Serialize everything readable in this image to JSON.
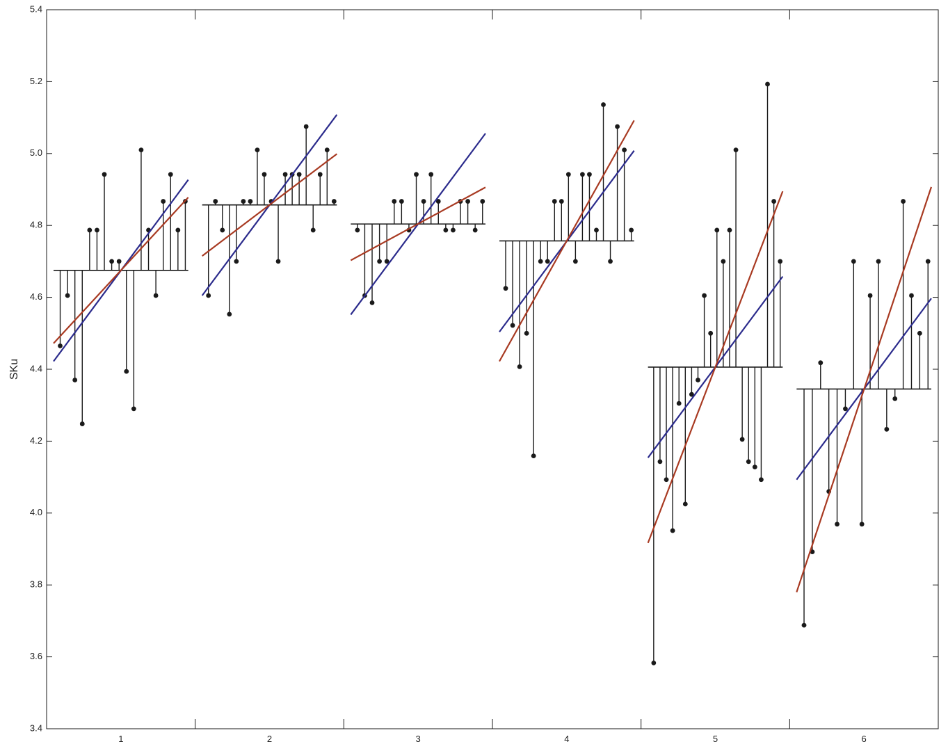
{
  "chart_data": {
    "type": "scatter",
    "title": "",
    "xlabel": "",
    "ylabel": "SKu",
    "ylim": [
      3.4,
      5.4
    ],
    "y_ticks": [
      "3.4",
      "3.6",
      "3.8",
      "4.0",
      "4.2",
      "4.4",
      "4.6",
      "4.8",
      "5.0",
      "5.2",
      "5.4"
    ],
    "categories": [
      "1",
      "2",
      "3",
      "4",
      "5",
      "6"
    ],
    "grid": false,
    "legend": "none",
    "colors": {
      "stem": "#1a1a1a",
      "blue_fit": "#2b2b8c",
      "red_fit": "#a83a22"
    },
    "groups": [
      {
        "category": "1",
        "mean": 4.675,
        "points": [
          4.465,
          4.605,
          4.37,
          4.248,
          4.787,
          4.787,
          4.942,
          4.7,
          4.7,
          4.394,
          4.29,
          5.01,
          4.787,
          4.605,
          4.867,
          4.942,
          4.787,
          4.867
        ],
        "blue_fit": [
          4.422,
          4.927
        ],
        "red_fit": [
          4.472,
          4.878
        ]
      },
      {
        "category": "2",
        "mean": 4.857,
        "points": [
          4.605,
          4.867,
          4.787,
          4.553,
          4.7,
          4.867,
          4.867,
          5.01,
          4.942,
          4.867,
          4.7,
          4.942,
          4.942,
          4.942,
          5.075,
          4.787,
          4.942,
          5.01,
          4.867
        ],
        "blue_fit": [
          4.605,
          5.108
        ],
        "red_fit": [
          4.715,
          4.999
        ]
      },
      {
        "category": "3",
        "mean": 4.804,
        "points": [
          4.787,
          4.605,
          4.585,
          4.7,
          4.7,
          4.867,
          4.867,
          4.787,
          4.942,
          4.867,
          4.942,
          4.867,
          4.787,
          4.787,
          4.867,
          4.867,
          4.787,
          4.867
        ],
        "blue_fit": [
          4.552,
          5.056
        ],
        "red_fit": [
          4.703,
          4.906
        ]
      },
      {
        "category": "4",
        "mean": 4.757,
        "points": [
          4.625,
          4.522,
          4.407,
          4.5,
          4.159,
          4.7,
          4.7,
          4.867,
          4.867,
          4.942,
          4.7,
          4.942,
          4.942,
          4.787,
          5.136,
          4.7,
          5.075,
          5.01,
          4.787
        ],
        "blue_fit": [
          4.504,
          5.008
        ],
        "red_fit": [
          4.422,
          5.092
        ]
      },
      {
        "category": "5",
        "mean": 4.406,
        "points": [
          3.583,
          4.143,
          4.093,
          3.951,
          4.305,
          4.025,
          4.33,
          4.37,
          4.605,
          4.5,
          4.787,
          4.7,
          4.787,
          5.01,
          4.205,
          4.143,
          4.128,
          4.093,
          5.193,
          4.867,
          4.7
        ],
        "blue_fit": [
          4.154,
          4.658
        ],
        "red_fit": [
          3.917,
          4.895
        ]
      },
      {
        "category": "6",
        "mean": 4.345,
        "points": [
          3.688,
          3.892,
          4.418,
          4.06,
          3.969,
          4.29,
          4.7,
          3.969,
          4.605,
          4.7,
          4.233,
          4.318,
          4.867,
          4.605,
          4.5,
          4.7
        ],
        "blue_fit": [
          4.093,
          4.597
        ],
        "red_fit": [
          3.78,
          4.907
        ]
      }
    ]
  }
}
